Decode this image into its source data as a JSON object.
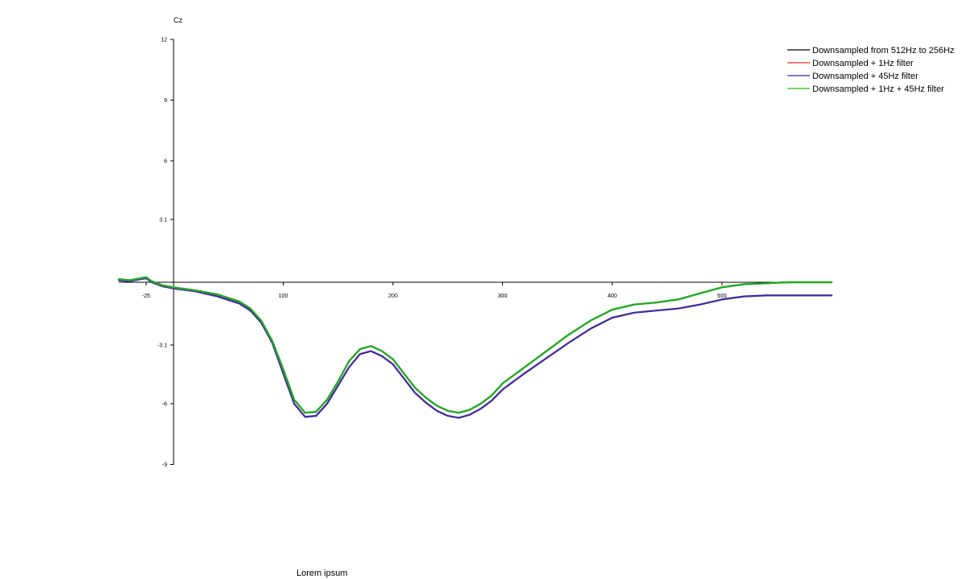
{
  "chart_data": {
    "type": "line",
    "title": "",
    "ylabel": "Cz",
    "xlabel": "Lorem ipsum",
    "xlim": [
      -50,
      600
    ],
    "ylim": [
      -9,
      12
    ],
    "x_ticks": [
      -25,
      100,
      200,
      300,
      400,
      500
    ],
    "x_tick_labels": [
      "-25",
      "100",
      "200",
      "300",
      "400",
      "500"
    ],
    "y_ticks": [
      12,
      9,
      6,
      3.1,
      -3.1,
      -6,
      -9
    ],
    "y_tick_labels": [
      "12",
      "9",
      "6",
      "3.1",
      "-3.1",
      "-6",
      "-9"
    ],
    "grid": false,
    "legend_position": "top-right",
    "series": [
      {
        "name": "Downsampled from 512Hz to 256Hz",
        "color": "#000000",
        "x": [
          -50,
          -40,
          -30,
          -25,
          -20,
          -10,
          0,
          20,
          40,
          60,
          70,
          80,
          90,
          100,
          110,
          120,
          130,
          140,
          150,
          160,
          170,
          180,
          190,
          200,
          210,
          220,
          230,
          240,
          250,
          260,
          270,
          280,
          290,
          300,
          320,
          340,
          360,
          380,
          400,
          420,
          440,
          460,
          480,
          500,
          520,
          540,
          560,
          580,
          600
        ],
        "y": [
          0.15,
          0.1,
          0.2,
          0.25,
          0.05,
          -0.15,
          -0.25,
          -0.4,
          -0.6,
          -0.95,
          -1.3,
          -1.9,
          -2.9,
          -4.3,
          -5.8,
          -6.45,
          -6.4,
          -5.8,
          -4.9,
          -3.9,
          -3.3,
          -3.15,
          -3.4,
          -3.8,
          -4.5,
          -5.2,
          -5.7,
          -6.1,
          -6.35,
          -6.45,
          -6.3,
          -6.0,
          -5.6,
          -5.0,
          -4.2,
          -3.4,
          -2.6,
          -1.9,
          -1.35,
          -1.1,
          -1.0,
          -0.85,
          -0.55,
          -0.25,
          -0.1,
          -0.05,
          0.0,
          0.0,
          0.0
        ]
      },
      {
        "name": "Downsampled + 1Hz filter",
        "color": "#e8302a",
        "x": [
          -50,
          -40,
          -30,
          -25,
          -20,
          -10,
          0,
          20,
          40,
          60,
          70,
          80,
          90,
          100,
          110,
          120,
          130,
          140,
          150,
          160,
          170,
          180,
          190,
          200,
          210,
          220,
          230,
          240,
          250,
          260,
          270,
          280,
          290,
          300,
          320,
          340,
          360,
          380,
          400,
          420,
          440,
          460,
          480,
          500,
          520,
          540,
          560,
          580,
          600
        ],
        "y": [
          0.1,
          0.05,
          0.15,
          0.2,
          0.0,
          -0.2,
          -0.3,
          -0.45,
          -0.7,
          -1.05,
          -1.4,
          -2.0,
          -3.0,
          -4.5,
          -6.0,
          -6.65,
          -6.6,
          -6.0,
          -5.1,
          -4.2,
          -3.55,
          -3.4,
          -3.65,
          -4.05,
          -4.75,
          -5.45,
          -5.95,
          -6.35,
          -6.6,
          -6.7,
          -6.55,
          -6.25,
          -5.85,
          -5.3,
          -4.5,
          -3.75,
          -3.0,
          -2.3,
          -1.75,
          -1.5,
          -1.4,
          -1.3,
          -1.1,
          -0.85,
          -0.7,
          -0.65,
          -0.65,
          -0.65,
          -0.65
        ]
      },
      {
        "name": "Downsampled + 45Hz filter",
        "color": "#2b2ba8",
        "x": [
          -50,
          -40,
          -30,
          -25,
          -20,
          -10,
          0,
          20,
          40,
          60,
          70,
          80,
          90,
          100,
          110,
          120,
          130,
          140,
          150,
          160,
          170,
          180,
          190,
          200,
          210,
          220,
          230,
          240,
          250,
          260,
          270,
          280,
          290,
          300,
          320,
          340,
          360,
          380,
          400,
          420,
          440,
          460,
          480,
          500,
          520,
          540,
          560,
          580,
          600
        ],
        "y": [
          0.1,
          0.05,
          0.15,
          0.2,
          0.0,
          -0.2,
          -0.3,
          -0.45,
          -0.7,
          -1.05,
          -1.4,
          -2.0,
          -3.0,
          -4.5,
          -6.0,
          -6.65,
          -6.6,
          -6.0,
          -5.1,
          -4.2,
          -3.55,
          -3.4,
          -3.65,
          -4.05,
          -4.75,
          -5.45,
          -5.95,
          -6.35,
          -6.6,
          -6.7,
          -6.55,
          -6.25,
          -5.85,
          -5.3,
          -4.5,
          -3.75,
          -3.0,
          -2.3,
          -1.75,
          -1.5,
          -1.4,
          -1.3,
          -1.1,
          -0.85,
          -0.7,
          -0.65,
          -0.65,
          -0.65,
          -0.65
        ]
      },
      {
        "name": "Downsampled + 1Hz + 45Hz filter",
        "color": "#22bb22",
        "x": [
          -50,
          -40,
          -30,
          -25,
          -20,
          -10,
          0,
          20,
          40,
          60,
          70,
          80,
          90,
          100,
          110,
          120,
          130,
          140,
          150,
          160,
          170,
          180,
          190,
          200,
          210,
          220,
          230,
          240,
          250,
          260,
          270,
          280,
          290,
          300,
          320,
          340,
          360,
          380,
          400,
          420,
          440,
          460,
          480,
          500,
          520,
          540,
          560,
          580,
          600
        ],
        "y": [
          0.15,
          0.1,
          0.2,
          0.25,
          0.05,
          -0.15,
          -0.25,
          -0.4,
          -0.6,
          -0.95,
          -1.3,
          -1.9,
          -2.9,
          -4.3,
          -5.8,
          -6.45,
          -6.4,
          -5.8,
          -4.9,
          -3.9,
          -3.3,
          -3.15,
          -3.4,
          -3.8,
          -4.5,
          -5.2,
          -5.7,
          -6.1,
          -6.35,
          -6.45,
          -6.3,
          -6.0,
          -5.6,
          -5.0,
          -4.2,
          -3.4,
          -2.6,
          -1.9,
          -1.35,
          -1.1,
          -1.0,
          -0.85,
          -0.55,
          -0.25,
          -0.1,
          -0.05,
          0.0,
          0.0,
          0.0
        ]
      }
    ]
  }
}
